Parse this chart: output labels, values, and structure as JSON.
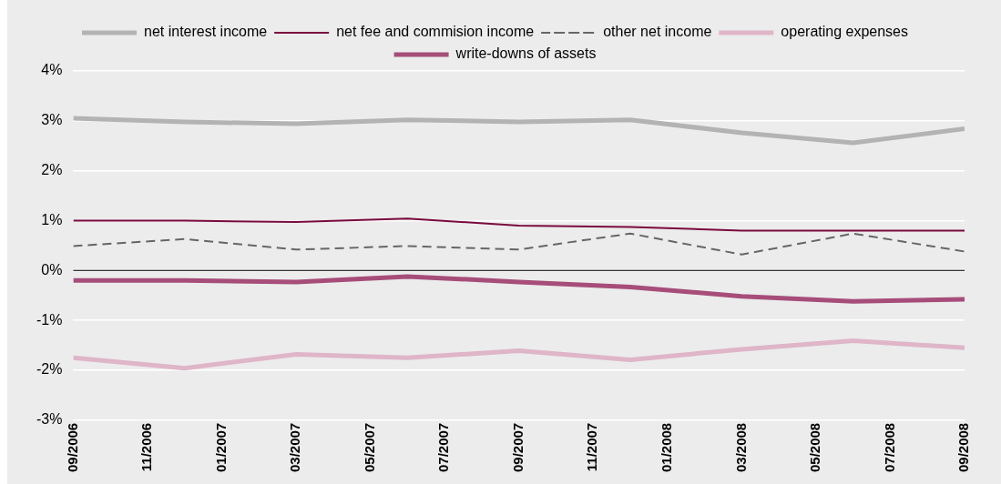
{
  "chart_data": {
    "type": "line",
    "x": [
      "2006-09",
      "2006-12",
      "2007-03",
      "2007-06",
      "2007-09",
      "2007-12",
      "2008-03",
      "2008-06",
      "2008-09"
    ],
    "series": [
      {
        "name": "net interest income",
        "color": "#b3b3b3",
        "values": [
          3.05,
          2.98,
          2.94,
          3.02,
          2.98,
          3.02,
          2.76,
          2.56,
          2.84
        ]
      },
      {
        "name": "net fee and commision income",
        "color": "#7a0a3e",
        "values": [
          1.0,
          1.0,
          0.97,
          1.04,
          0.9,
          0.87,
          0.8,
          0.8,
          0.8
        ]
      },
      {
        "name": "other net income",
        "color": "#666666",
        "line_style": "dashed",
        "values": [
          0.49,
          0.63,
          0.42,
          0.49,
          0.42,
          0.74,
          0.32,
          0.74,
          0.38
        ]
      },
      {
        "name": "operating expenses",
        "color": "#dfb5c8",
        "values": [
          -1.75,
          -1.96,
          -1.68,
          -1.75,
          -1.61,
          -1.79,
          -1.58,
          -1.41,
          -1.55
        ]
      },
      {
        "name": "write-downs of assets",
        "color": "#a64d7a",
        "values": [
          -0.2,
          -0.2,
          -0.23,
          -0.12,
          -0.23,
          -0.33,
          -0.52,
          -0.62,
          -0.58
        ]
      }
    ],
    "xlim": [
      "2006-09",
      "2008-09"
    ],
    "xticks": [
      {
        "value": "2006-09",
        "label": "09/2006"
      },
      {
        "value": "2006-11",
        "label": "11/2006"
      },
      {
        "value": "2007-01",
        "label": "01/2007"
      },
      {
        "value": "2007-03",
        "label": "03/2007"
      },
      {
        "value": "2007-05",
        "label": "05/2007"
      },
      {
        "value": "2007-07",
        "label": "07/2007"
      },
      {
        "value": "2007-09",
        "label": "09/2007"
      },
      {
        "value": "2007-11",
        "label": "11/2007"
      },
      {
        "value": "2008-01",
        "label": "01/2008"
      },
      {
        "value": "2008-03",
        "label": "03/2008"
      },
      {
        "value": "2008-05",
        "label": "05/2008"
      },
      {
        "value": "2008-07",
        "label": "07/2008"
      },
      {
        "value": "2008-09",
        "label": "09/2008"
      }
    ],
    "ylim": [
      -3,
      4
    ],
    "yticks": [
      {
        "value": -3,
        "label": "-3%"
      },
      {
        "value": -2,
        "label": "-2%"
      },
      {
        "value": -1,
        "label": "-1%"
      },
      {
        "value": 0,
        "label": "0%"
      },
      {
        "value": 1,
        "label": "1%"
      },
      {
        "value": 2,
        "label": "2%"
      },
      {
        "value": 3,
        "label": "3%"
      },
      {
        "value": 4,
        "label": "4%"
      }
    ],
    "ref_lines": [
      {
        "axis": "y",
        "value": 0,
        "color": "#000000"
      }
    ],
    "grid": "y",
    "legend": "top",
    "marker": "none",
    "line_style": "solid"
  }
}
